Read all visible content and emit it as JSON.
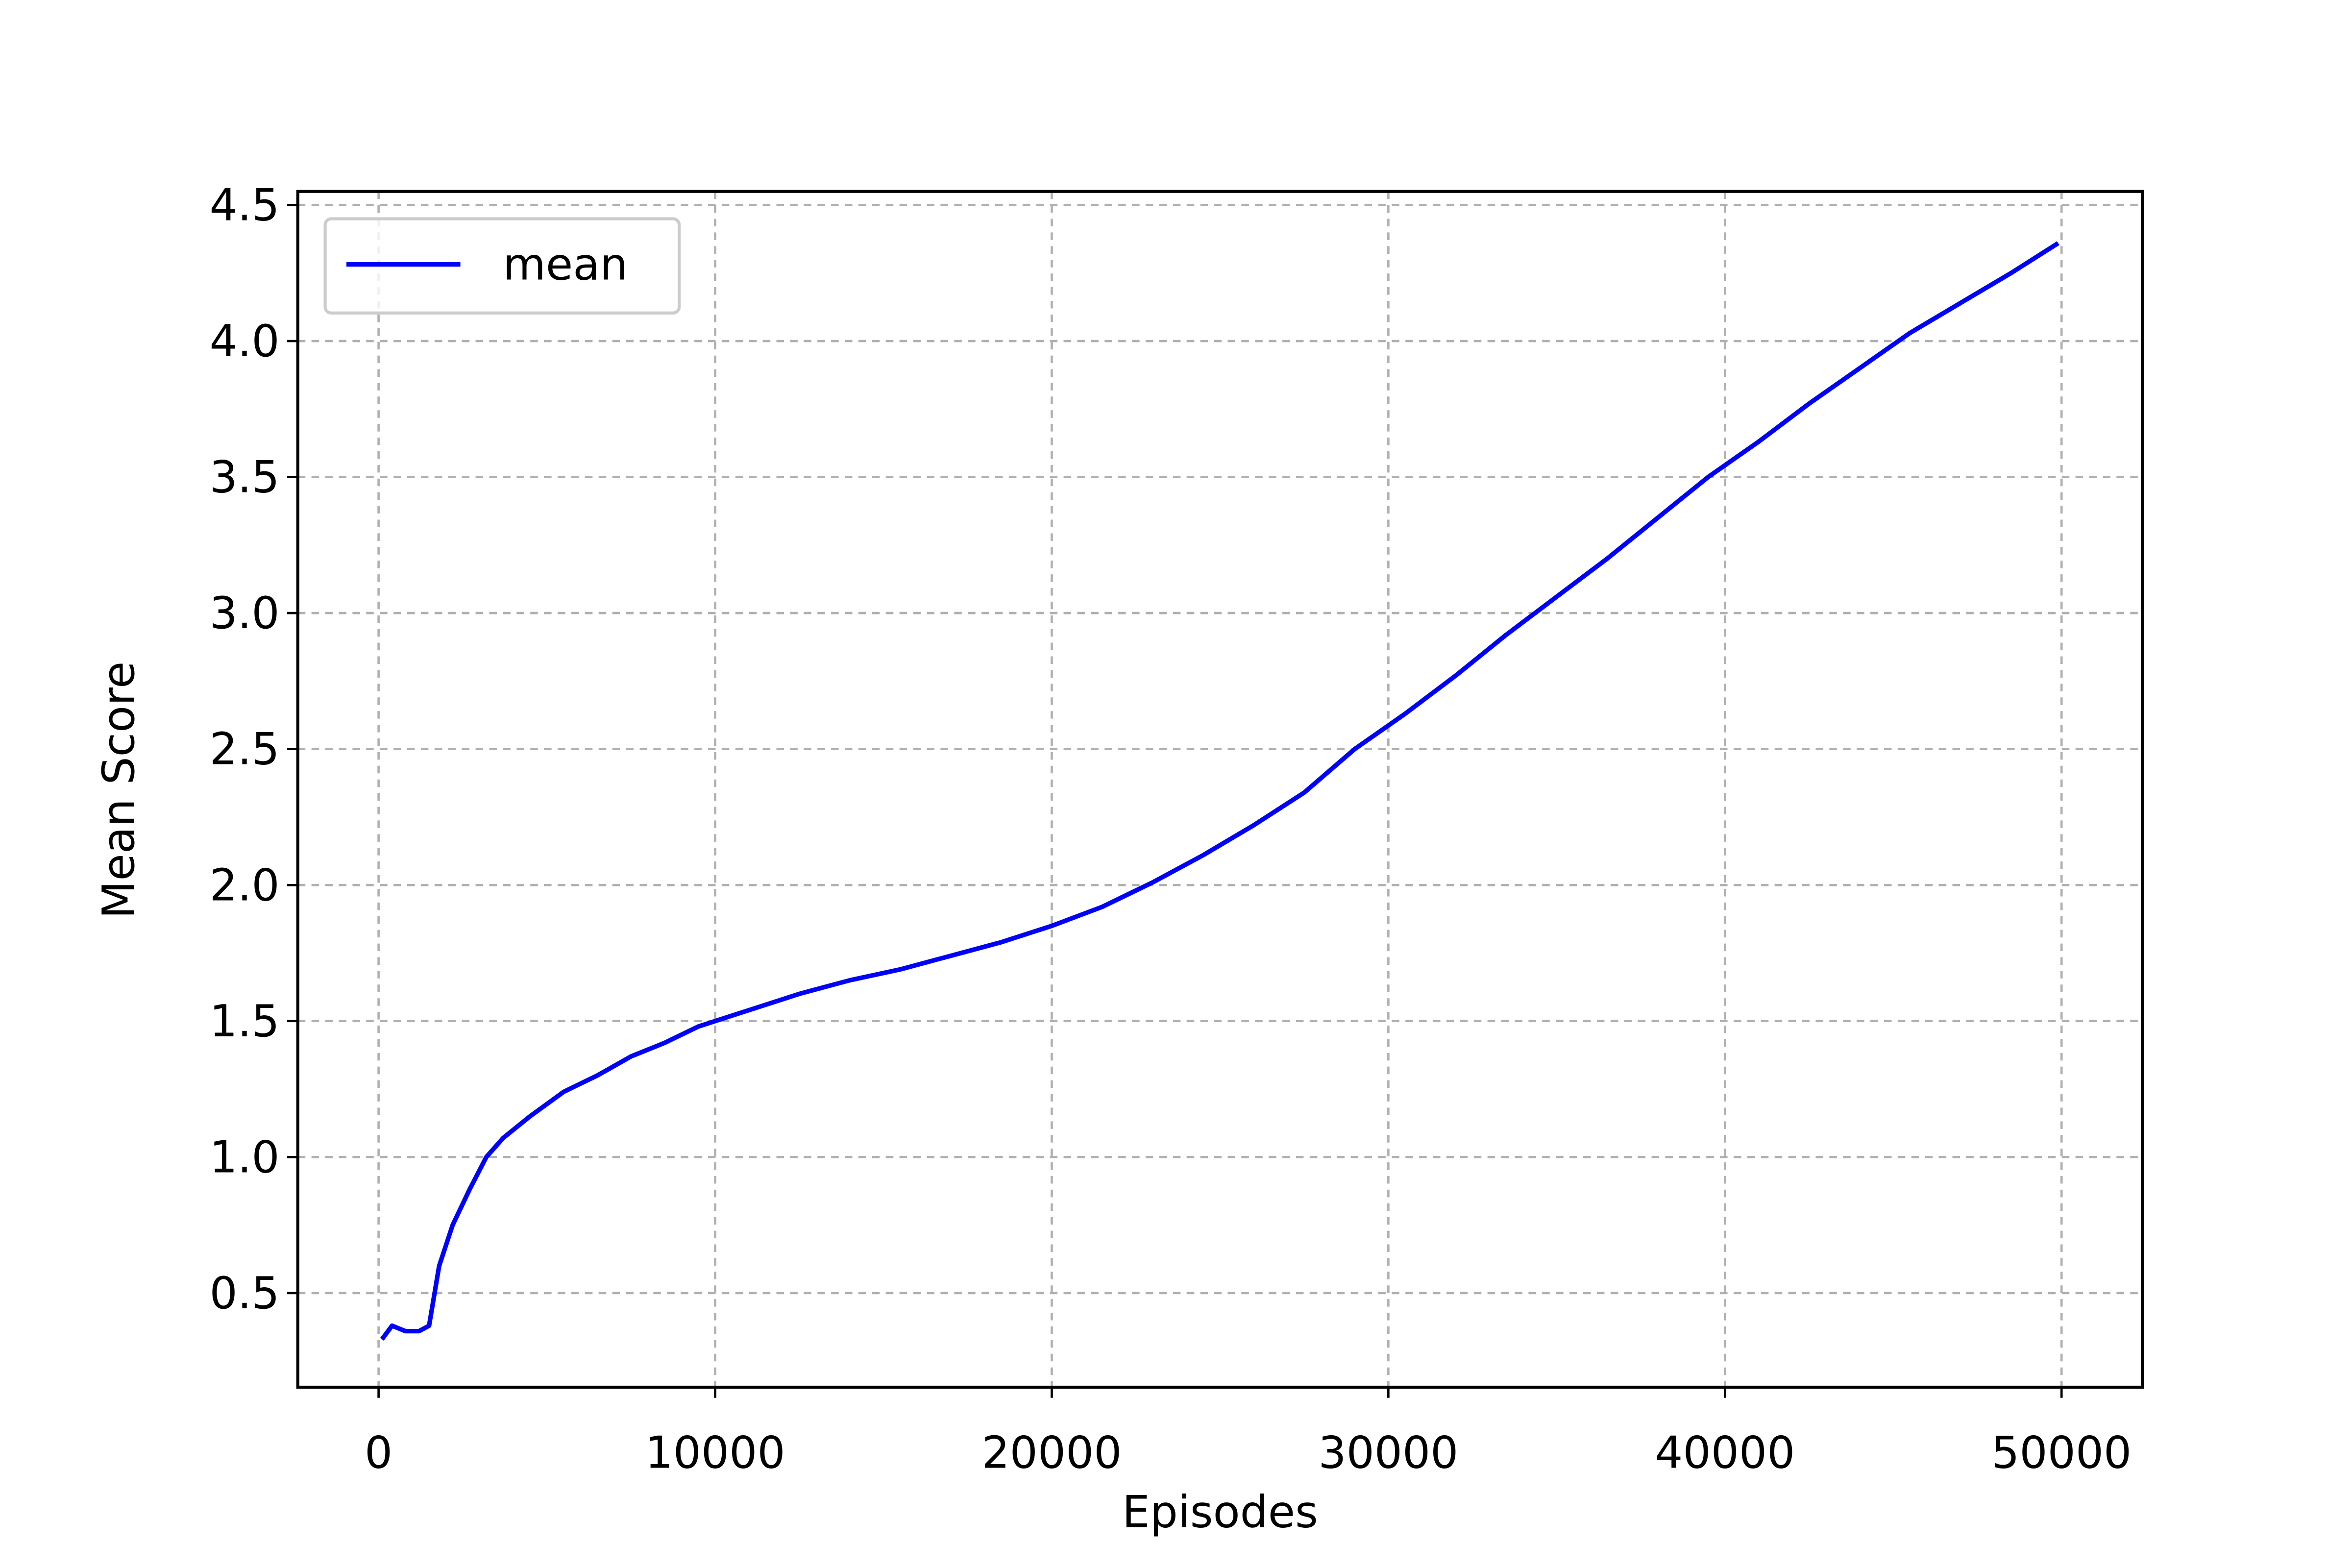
{
  "chart_data": {
    "type": "line",
    "xlabel": "Episodes",
    "ylabel": "Mean Score",
    "x": [
      100,
      400,
      800,
      1200,
      1500,
      1800,
      2200,
      2700,
      3200,
      3700,
      4500,
      5500,
      6500,
      7500,
      8500,
      9500,
      10500,
      11500,
      12500,
      14000,
      15500,
      17000,
      18500,
      20000,
      21500,
      23000,
      24500,
      26000,
      27500,
      29000,
      30500,
      32000,
      33500,
      35000,
      36500,
      38000,
      39500,
      41000,
      42500,
      44000,
      45500,
      47000,
      48500,
      49900
    ],
    "series": [
      {
        "name": "mean",
        "color": "#0000ff",
        "values": [
          0.33,
          0.38,
          0.36,
          0.36,
          0.38,
          0.6,
          0.75,
          0.88,
          1.0,
          1.07,
          1.15,
          1.24,
          1.3,
          1.37,
          1.42,
          1.48,
          1.52,
          1.56,
          1.6,
          1.65,
          1.69,
          1.74,
          1.79,
          1.85,
          1.92,
          2.01,
          2.11,
          2.22,
          2.34,
          2.5,
          2.63,
          2.77,
          2.92,
          3.06,
          3.2,
          3.35,
          3.5,
          3.63,
          3.77,
          3.9,
          4.03,
          4.14,
          4.25,
          4.36
        ]
      }
    ],
    "xlim": [
      -2400,
      52400
    ],
    "ylim": [
      0.154,
      4.55
    ],
    "xticks": [
      0,
      10000,
      20000,
      30000,
      40000,
      50000
    ],
    "yticks": [
      {
        "value": 0.5,
        "label": "0.5"
      },
      {
        "value": 1,
        "label": "1.0"
      },
      {
        "value": 1.5,
        "label": "1.5"
      },
      {
        "value": 2,
        "label": "2.0"
      },
      {
        "value": 2.5,
        "label": "2.5"
      },
      {
        "value": 3,
        "label": "3.0"
      },
      {
        "value": 3.5,
        "label": "3.5"
      },
      {
        "value": 4,
        "label": "4.0"
      },
      {
        "value": 4.5,
        "label": "4.5"
      }
    ],
    "grid": true,
    "legend": "upper left"
  }
}
